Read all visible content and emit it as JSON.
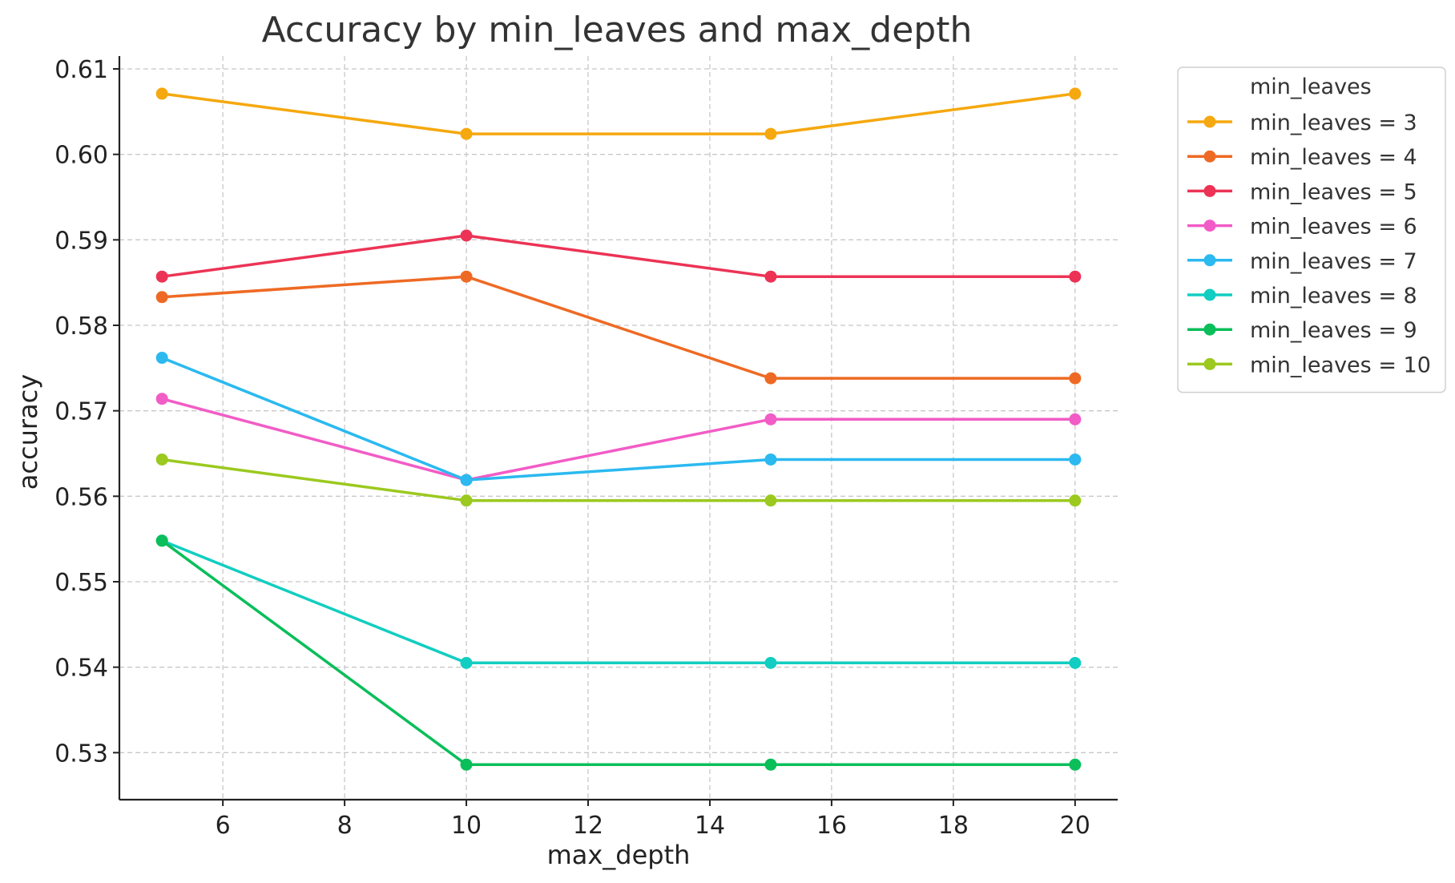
{
  "chart_data": {
    "type": "line",
    "title": "Accuracy by min_leaves and max_depth",
    "xlabel": "max_depth",
    "ylabel": "accuracy",
    "x": [
      5,
      10,
      15,
      20
    ],
    "xlim": [
      4.3,
      20.7
    ],
    "ylim": [
      0.5245,
      0.6115
    ],
    "xticks": [
      6,
      8,
      10,
      12,
      14,
      16,
      18,
      20
    ],
    "yticks": [
      0.53,
      0.54,
      0.55,
      0.56,
      0.57,
      0.58,
      0.59,
      0.6,
      0.61
    ],
    "grid": true,
    "legend": {
      "title": "min_leaves",
      "placement": "outside-right-top"
    },
    "series": [
      {
        "name": "min_leaves = 3",
        "color": "#F5A80F",
        "values": [
          0.6071,
          0.6024,
          0.6024,
          0.6071
        ]
      },
      {
        "name": "min_leaves = 4",
        "color": "#EE6A24",
        "values": [
          0.5833,
          0.5857,
          0.5738,
          0.5738
        ]
      },
      {
        "name": "min_leaves = 5",
        "color": "#EC3355",
        "values": [
          0.5857,
          0.5905,
          0.5857,
          0.5857
        ]
      },
      {
        "name": "min_leaves = 6",
        "color": "#F25CC6",
        "values": [
          0.5714,
          0.5619,
          0.569,
          0.569
        ]
      },
      {
        "name": "min_leaves = 7",
        "color": "#2BB9F0",
        "values": [
          0.5762,
          0.5619,
          0.5643,
          0.5643
        ]
      },
      {
        "name": "min_leaves = 8",
        "color": "#12CDC1",
        "values": [
          0.5548,
          0.5405,
          0.5405,
          0.5405
        ]
      },
      {
        "name": "min_leaves = 9",
        "color": "#0ABE5A",
        "values": [
          0.5548,
          0.5286,
          0.5286,
          0.5286
        ]
      },
      {
        "name": "min_leaves = 10",
        "color": "#9BC91F",
        "values": [
          0.5643,
          0.5595,
          0.5595,
          0.5595
        ]
      }
    ]
  }
}
